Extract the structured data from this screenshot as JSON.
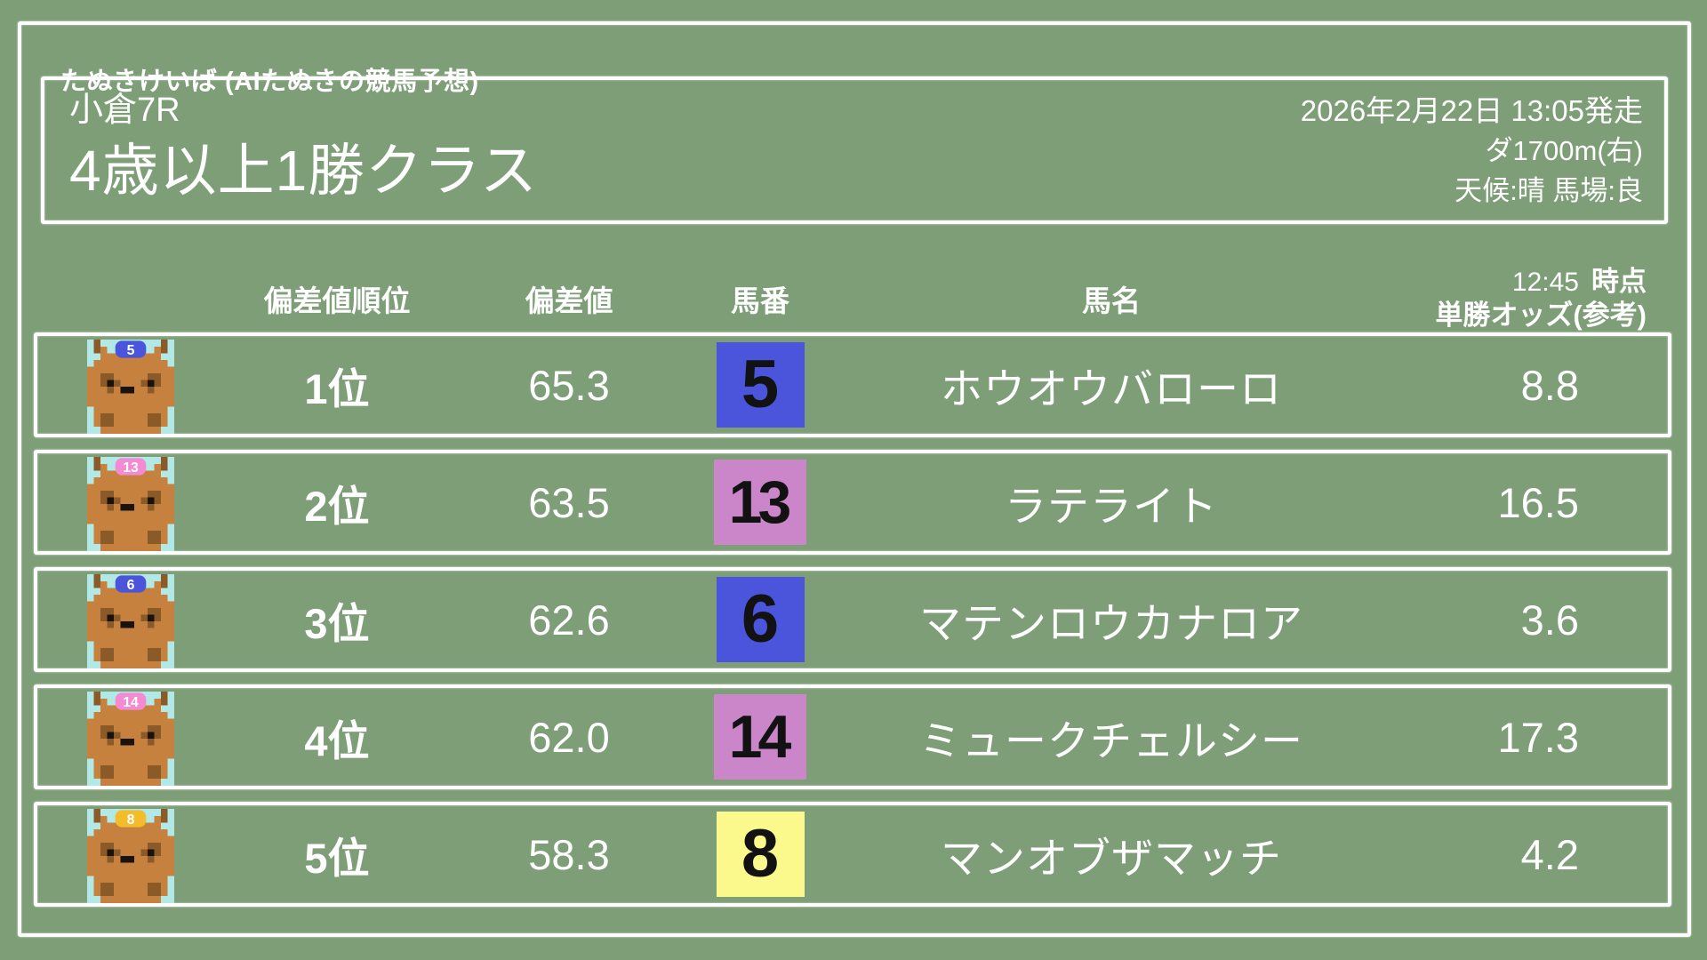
{
  "app": {
    "title": "たぬきけいば (AIたぬきの競馬予想)"
  },
  "race": {
    "course": "小倉7R",
    "class_name": "4歳以上1勝クラス",
    "start": "2026年2月22日 13:05発走",
    "distance": "ダ1700m(右)",
    "conditions": "天候:晴 馬場:良"
  },
  "table": {
    "headers": {
      "rank": "偏差値順位",
      "deviation": "偏差値",
      "number": "馬番",
      "name": "馬名",
      "odds_time": "12:45",
      "odds_time_suffix": "時点",
      "odds_label": "単勝オッズ(参考)"
    },
    "rows": [
      {
        "rank": "1位",
        "deviation": "65.3",
        "number": "5",
        "number_bg": "#4a55dc",
        "cap_color": "#4a55dc",
        "name": "ホウオウバローロ",
        "odds": "8.8"
      },
      {
        "rank": "2位",
        "deviation": "63.5",
        "number": "13",
        "number_bg": "#cb85c9",
        "cap_color": "#f38ad2",
        "name": "ラテライト",
        "odds": "16.5"
      },
      {
        "rank": "3位",
        "deviation": "62.6",
        "number": "6",
        "number_bg": "#4a55dc",
        "cap_color": "#4a55dc",
        "name": "マテンロウカナロア",
        "odds": "3.6"
      },
      {
        "rank": "4位",
        "deviation": "62.0",
        "number": "14",
        "number_bg": "#cb85c9",
        "cap_color": "#f38ad2",
        "name": "ミュークチェルシー",
        "odds": "17.3"
      },
      {
        "rank": "5位",
        "deviation": "58.3",
        "number": "8",
        "number_bg": "#fbf88c",
        "cap_color": "#f2bc2a",
        "name": "マンオブザマッチ",
        "odds": "4.2"
      }
    ]
  },
  "icons": {
    "mascot": "tanuki-icon"
  },
  "colors": {
    "background": "#7d9e77",
    "border": "#ffffff",
    "number_text": "#121212",
    "icon_bg": "#b2e9e6",
    "tanuki_body": "#c5813d",
    "tanuki_dark": "#8a5a28",
    "tanuki_black": "#1a130b"
  }
}
